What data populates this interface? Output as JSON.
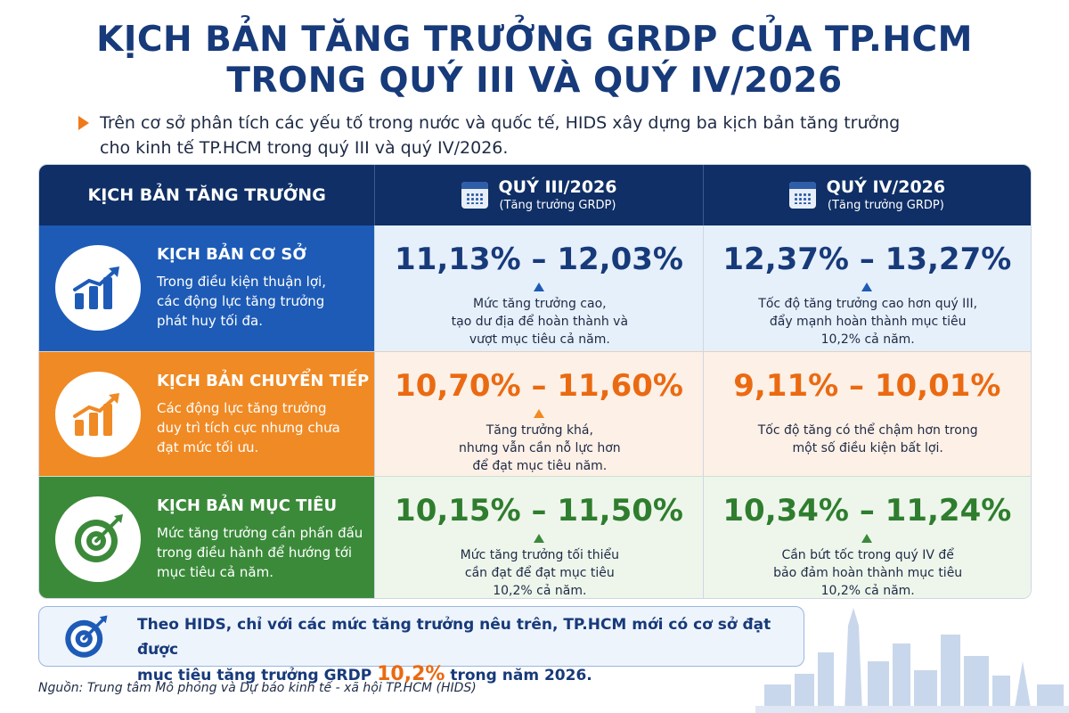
{
  "title": {
    "line1": "KỊCH BẢN TĂNG TRƯỞNG GRDP CỦA TP.HCM",
    "line2": "TRONG QUÝ III VÀ QUÝ IV/2026"
  },
  "intro": {
    "line1": "Trên cơ sở phân tích các yếu tố trong nước và quốc tế, HIDS xây dựng ba kịch bản tăng trưởng",
    "line2": "cho kinh tế TP.HCM trong quý III và quý IV/2026."
  },
  "table": {
    "header": {
      "col0": "KỊCH BẢN TĂNG TRƯỞNG",
      "q3": {
        "title": "QUÝ III/2026",
        "sub": "(Tăng trưởng GRDP)",
        "icon": "calendar-icon"
      },
      "q4": {
        "title": "QUÝ IV/2026",
        "sub": "(Tăng trưởng GRDP)",
        "icon": "calendar-icon"
      }
    },
    "rows": [
      {
        "title": "KỊCH BẢN CƠ SỞ",
        "desc": [
          "Trong điều kiện thuận lợi,",
          "các động lực tăng trưởng",
          "phát huy tối đa."
        ],
        "icon": "bar-chart-growth-icon",
        "color": "#1d5bb6",
        "q3": {
          "range": "11,13% – 12,03%",
          "desc": [
            "Mức tăng trưởng cao,",
            "tạo dư địa để hoàn thành và",
            "vượt mục tiêu cả năm."
          ]
        },
        "q4": {
          "range": "12,37% – 13,27%",
          "desc": [
            "Tốc độ tăng trưởng cao hơn quý III,",
            "đẩy mạnh hoàn thành mục tiêu",
            "10,2% cả năm."
          ]
        }
      },
      {
        "title": "KỊCH BẢN CHUYỂN TIẾP",
        "desc": [
          "Các động lực tăng trưởng",
          "duy trì tích cực nhưng chưa",
          "đạt mức tối ưu."
        ],
        "icon": "bar-chart-growth-icon",
        "color": "#f08a24",
        "q3": {
          "range": "10,70% – 11,60%",
          "desc": [
            "Tăng trưởng khá,",
            "nhưng vẫn cần nỗ lực hơn",
            "để đạt mục tiêu năm."
          ]
        },
        "q4": {
          "range": "9,11% – 10,01%",
          "desc": [
            "Tốc độ tăng có thể chậm hơn trong",
            "một số điều kiện bất lợi."
          ]
        }
      },
      {
        "title": "KỊCH BẢN MỤC TIÊU",
        "desc": [
          "Mức tăng trưởng cần phấn đấu",
          "trong điều hành để hướng tới",
          "mục tiêu cả năm."
        ],
        "icon": "target-icon",
        "color": "#3b8a3a",
        "q3": {
          "range": "10,15% – 11,50%",
          "desc": [
            "Mức tăng trưởng tối thiểu",
            "cần đạt để đạt mục tiêu",
            "10,2% cả năm."
          ]
        },
        "q4": {
          "range": "10,34% – 11,24%",
          "desc": [
            "Cần bứt tốc trong quý IV để",
            "bảo đảm hoàn thành mục tiêu",
            "10,2% cả năm."
          ]
        }
      }
    ]
  },
  "conclusion": {
    "line1": "Theo HIDS, chỉ với các mức tăng trưởng nêu trên, TP.HCM mới có cơ sở đạt được",
    "line2_pre": "mục tiêu tăng trưởng GRDP ",
    "highlight": "10,2%",
    "line2_post": " trong năm 2026.",
    "icon": "target-icon"
  },
  "source": "Nguồn: Trung tâm Mô phỏng và Dự báo kinh tế - xã hội TP.HCM (HIDS)"
}
